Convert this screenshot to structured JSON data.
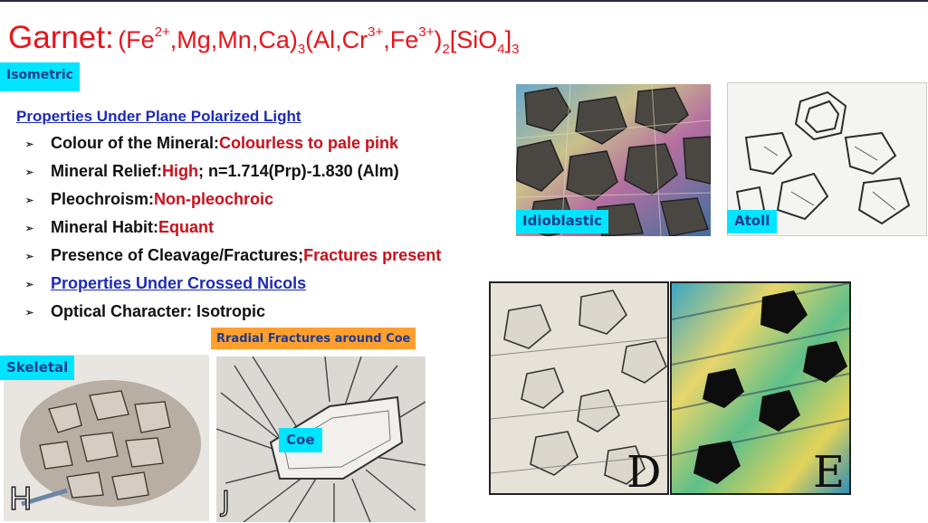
{
  "title": {
    "main": "Garnet:",
    "formula": {
      "p1": "(Fe",
      "s1": "2+",
      "p2": ",Mg,Mn,Ca)",
      "b1": "3",
      "p3": "(Al,Cr",
      "s2": "3+",
      "p4": ",Fe",
      "s3": "3+",
      "p5": ")",
      "b2": "2",
      "p6": "[SiO",
      "b3": "4",
      "p7": "]",
      "b4": "3"
    }
  },
  "labels": {
    "isometric": "Isometric",
    "idioblastic": "Idioblastic",
    "atoll": "Atoll",
    "skeletal": "Skeletal",
    "radial": "Rradial Fractures around Coe",
    "coe": "Coe",
    "letter_d": "D",
    "letter_e": "E",
    "letter_h": "H",
    "letter_j": "J"
  },
  "ppl": {
    "heading": "Properties Under Plane Polarized Light",
    "bullet": "➢",
    "items": [
      {
        "label": "Colour of the Mineral: ",
        "value": "Colourless to pale pink",
        "extra": ""
      },
      {
        "label": "Mineral Relief: ",
        "value": "High",
        "extra": "; n=1.714(Prp)-1.830 (Alm)"
      },
      {
        "label": "Pleochroism: ",
        "value": "Non-pleochroic",
        "extra": ""
      },
      {
        "label": "Mineral Habit: ",
        "value": "Equant",
        "extra": ""
      },
      {
        "label": "Presence of Cleavage/Fractures; ",
        "value": "Fractures present",
        "extra": ""
      }
    ],
    "crossed_link": "Properties Under Crossed Nicols",
    "optical": "Optical Character: Isotropic"
  },
  "colors": {
    "title": "#e8141c",
    "label_bg": "#00e5ff",
    "orange_label_bg": "#ff9f2e",
    "link": "#1d2bb6",
    "value_red": "#c8101c"
  }
}
